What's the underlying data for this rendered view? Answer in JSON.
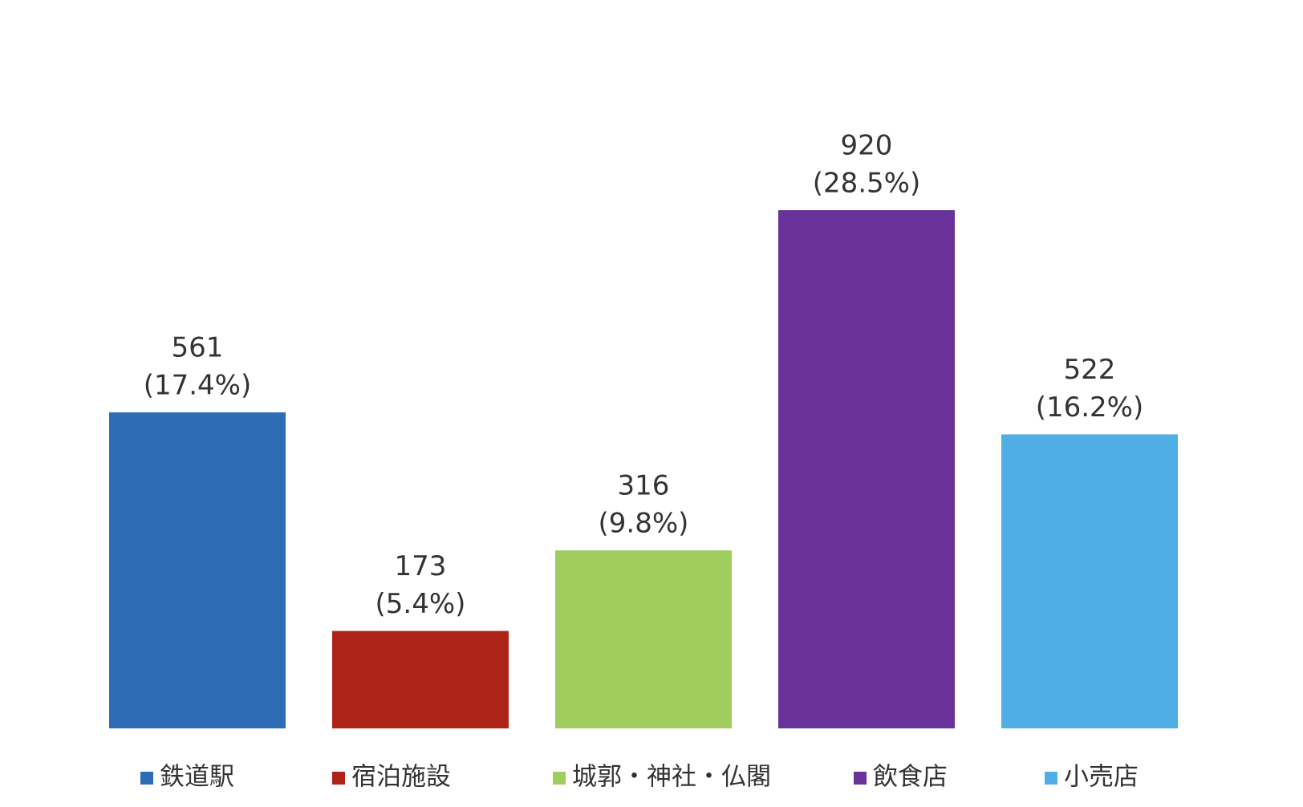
{
  "chart_data": {
    "type": "bar",
    "categories": [
      "鉄道駅",
      "宿泊施設",
      "城郭・神社・仏閣",
      "飲食店",
      "小売店"
    ],
    "values": [
      561,
      173,
      316,
      920,
      522
    ],
    "percent_labels": [
      "(17.4%)",
      "(5.4%)",
      "(9.8%)",
      "(28.5%)",
      "(16.2%)"
    ],
    "colors": [
      "#2e6db5",
      "#ae2318",
      "#a0cd5e",
      "#68329a",
      "#4faee6"
    ],
    "legend": "bottom"
  }
}
